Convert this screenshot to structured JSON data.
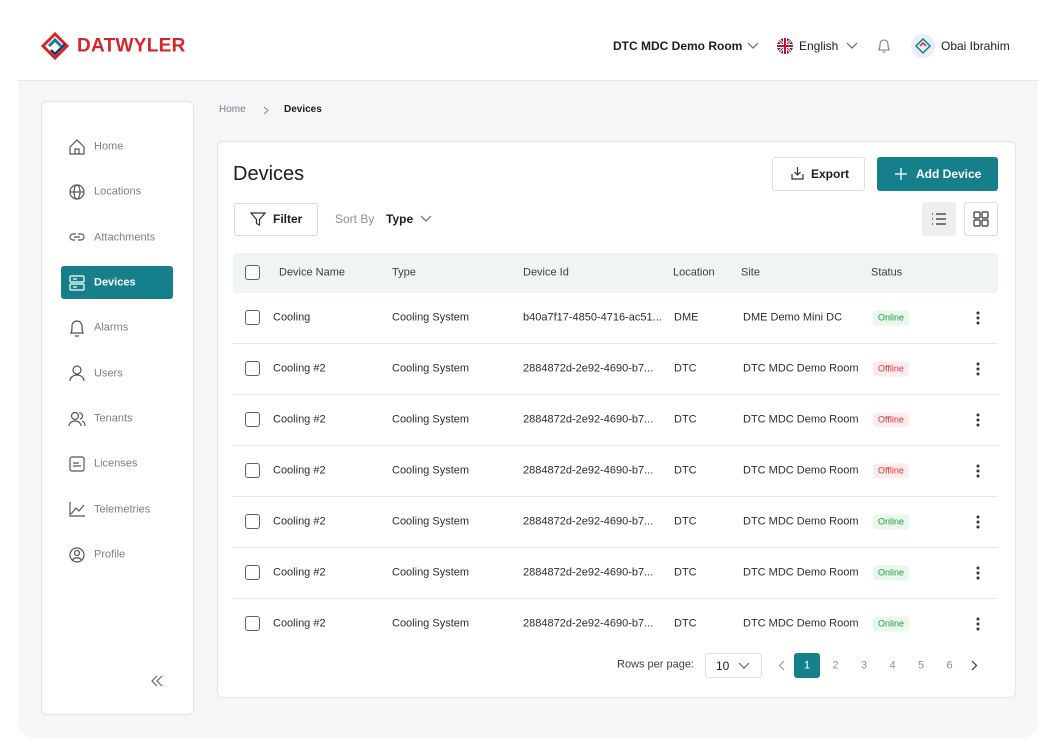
{
  "header": {
    "brand": "DATWYLER",
    "room": "DTC MDC Demo Room",
    "language": "English",
    "user": "Obai Ibrahim"
  },
  "sidebar": {
    "items": [
      "Home",
      "Locations",
      "Attachments",
      "Devices",
      "Alarms",
      "Users",
      "Tenants",
      "Licenses",
      "Telemetries",
      "Profile"
    ]
  },
  "breadcrumb": [
    "Home",
    "Devices"
  ],
  "content": {
    "title": "Devices",
    "export": "Export",
    "add_device": "Add Device",
    "filter": "Filter",
    "sort_by": "Sort By",
    "sort_value": "Type"
  },
  "table": {
    "columns": [
      "Device Name",
      "Type",
      "Device Id",
      "Location",
      "Site",
      "Status"
    ],
    "rows": [
      {
        "name": "Cooling",
        "type": "Cooling System",
        "device_id": "b40a7f17-4850-4716-ac51...",
        "location": "DME",
        "site": "DME Demo Mini DC",
        "status": "Online",
        "status_color": "#1f9d3f",
        "status_bg": "#e9f7ec"
      },
      {
        "name": "Cooling #2",
        "type": "Cooling System",
        "device_id": "2884872d-2e92-4690-b7...",
        "location": "DTC",
        "site": "DTC MDC Demo Room",
        "status": "Offline",
        "status_color": "#d9363e",
        "status_bg": "#fdecee"
      },
      {
        "name": "Cooling #2",
        "type": "Cooling System",
        "device_id": "2884872d-2e92-4690-b7...",
        "location": "DTC",
        "site": "DTC MDC Demo Room",
        "status": "Offline",
        "status_color": "#d9363e",
        "status_bg": "#fdecee"
      },
      {
        "name": "Cooling #2",
        "type": "Cooling System",
        "device_id": "2884872d-2e92-4690-b7...",
        "location": "DTC",
        "site": "DTC MDC Demo Room",
        "status": "Offline",
        "status_color": "#d9363e",
        "status_bg": "#fdecee"
      },
      {
        "name": "Cooling #2",
        "type": "Cooling System",
        "device_id": "2884872d-2e92-4690-b7...",
        "location": "DTC",
        "site": "DTC MDC Demo Room",
        "status": "Online",
        "status_color": "#1f9d3f",
        "status_bg": "#e9f7ec"
      },
      {
        "name": "Cooling #2",
        "type": "Cooling System",
        "device_id": "2884872d-2e92-4690-b7...",
        "location": "DTC",
        "site": "DTC MDC Demo Room",
        "status": "Online",
        "status_color": "#1f9d3f",
        "status_bg": "#e9f7ec"
      },
      {
        "name": "Cooling #2",
        "type": "Cooling System",
        "device_id": "2884872d-2e92-4690-b7...",
        "location": "DTC",
        "site": "DTC MDC Demo Room",
        "status": "Online",
        "status_color": "#1f9d3f",
        "status_bg": "#e9f7ec"
      }
    ]
  },
  "pagination": {
    "label": "Rows per page:",
    "rows_per_page": 10,
    "pages": [
      1,
      2,
      3,
      4,
      5,
      6
    ],
    "current": 1
  }
}
